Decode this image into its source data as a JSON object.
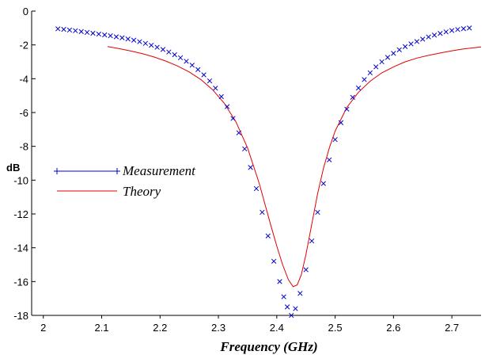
{
  "chart_data": {
    "type": "line",
    "title": "",
    "xlabel": "Frequency (GHz)",
    "ylabel": "dB",
    "xlim": [
      1.98,
      2.75
    ],
    "ylim": [
      -18,
      0
    ],
    "x_ticks": [
      "2",
      "2.1",
      "2.2",
      "2.3",
      "2.4",
      "2.5",
      "2.6",
      "2.7"
    ],
    "x_tick_values": [
      2,
      2.1,
      2.2,
      2.3,
      2.4,
      2.5,
      2.6,
      2.7
    ],
    "y_ticks": [
      "0",
      "-2",
      "-4",
      "-6",
      "-8",
      "-10",
      "-12",
      "-14",
      "-16",
      "-18"
    ],
    "y_tick_values": [
      0,
      -2,
      -4,
      -6,
      -8,
      -10,
      -12,
      -14,
      -16,
      -18
    ],
    "grid": false,
    "legend": {
      "placement": "center-left"
    },
    "series": [
      {
        "name": "Measurement",
        "marker": "x",
        "color": "#0000cc",
        "points": [
          [
            2.025,
            -1.05
          ],
          [
            2.035,
            -1.08
          ],
          [
            2.045,
            -1.12
          ],
          [
            2.055,
            -1.16
          ],
          [
            2.065,
            -1.21
          ],
          [
            2.075,
            -1.26
          ],
          [
            2.085,
            -1.31
          ],
          [
            2.095,
            -1.36
          ],
          [
            2.105,
            -1.41
          ],
          [
            2.115,
            -1.46
          ],
          [
            2.125,
            -1.52
          ],
          [
            2.135,
            -1.58
          ],
          [
            2.145,
            -1.65
          ],
          [
            2.155,
            -1.72
          ],
          [
            2.165,
            -1.81
          ],
          [
            2.175,
            -1.91
          ],
          [
            2.185,
            -2.02
          ],
          [
            2.195,
            -2.14
          ],
          [
            2.205,
            -2.27
          ],
          [
            2.215,
            -2.42
          ],
          [
            2.225,
            -2.58
          ],
          [
            2.235,
            -2.76
          ],
          [
            2.245,
            -2.97
          ],
          [
            2.255,
            -3.2
          ],
          [
            2.265,
            -3.46
          ],
          [
            2.275,
            -3.77
          ],
          [
            2.285,
            -4.13
          ],
          [
            2.295,
            -4.56
          ],
          [
            2.305,
            -5.06
          ],
          [
            2.315,
            -5.65
          ],
          [
            2.325,
            -6.35
          ],
          [
            2.335,
            -7.2
          ],
          [
            2.345,
            -8.15
          ],
          [
            2.355,
            -9.25
          ],
          [
            2.365,
            -10.5
          ],
          [
            2.375,
            -11.9
          ],
          [
            2.385,
            -13.3
          ],
          [
            2.395,
            -14.8
          ],
          [
            2.405,
            -16.0
          ],
          [
            2.412,
            -16.9
          ],
          [
            2.418,
            -17.5
          ],
          [
            2.425,
            -18.0
          ],
          [
            2.432,
            -17.6
          ],
          [
            2.44,
            -16.7
          ],
          [
            2.45,
            -15.3
          ],
          [
            2.46,
            -13.6
          ],
          [
            2.47,
            -11.9
          ],
          [
            2.48,
            -10.2
          ],
          [
            2.49,
            -8.8
          ],
          [
            2.5,
            -7.6
          ],
          [
            2.51,
            -6.6
          ],
          [
            2.52,
            -5.8
          ],
          [
            2.53,
            -5.1
          ],
          [
            2.54,
            -4.55
          ],
          [
            2.55,
            -4.05
          ],
          [
            2.56,
            -3.65
          ],
          [
            2.57,
            -3.3
          ],
          [
            2.58,
            -3.0
          ],
          [
            2.59,
            -2.74
          ],
          [
            2.6,
            -2.5
          ],
          [
            2.61,
            -2.29
          ],
          [
            2.62,
            -2.1
          ],
          [
            2.63,
            -1.94
          ],
          [
            2.64,
            -1.8
          ],
          [
            2.65,
            -1.66
          ],
          [
            2.66,
            -1.53
          ],
          [
            2.67,
            -1.42
          ],
          [
            2.68,
            -1.32
          ],
          [
            2.69,
            -1.23
          ],
          [
            2.7,
            -1.15
          ],
          [
            2.71,
            -1.09
          ],
          [
            2.72,
            -1.04
          ],
          [
            2.73,
            -1.0
          ]
        ]
      },
      {
        "name": "Theory",
        "marker": "line",
        "color": "#e00000",
        "points": [
          [
            2.11,
            -2.1
          ],
          [
            2.13,
            -2.22
          ],
          [
            2.15,
            -2.36
          ],
          [
            2.17,
            -2.52
          ],
          [
            2.19,
            -2.72
          ],
          [
            2.21,
            -2.96
          ],
          [
            2.23,
            -3.25
          ],
          [
            2.25,
            -3.6
          ],
          [
            2.27,
            -4.05
          ],
          [
            2.29,
            -4.65
          ],
          [
            2.31,
            -5.45
          ],
          [
            2.33,
            -6.55
          ],
          [
            2.35,
            -8.1
          ],
          [
            2.37,
            -10.2
          ],
          [
            2.39,
            -12.7
          ],
          [
            2.4,
            -13.9
          ],
          [
            2.41,
            -15.0
          ],
          [
            2.42,
            -15.9
          ],
          [
            2.428,
            -16.3
          ],
          [
            2.435,
            -16.2
          ],
          [
            2.442,
            -15.6
          ],
          [
            2.45,
            -14.4
          ],
          [
            2.46,
            -12.6
          ],
          [
            2.47,
            -10.8
          ],
          [
            2.48,
            -9.3
          ],
          [
            2.49,
            -8.1
          ],
          [
            2.5,
            -7.1
          ],
          [
            2.52,
            -5.7
          ],
          [
            2.54,
            -4.8
          ],
          [
            2.56,
            -4.15
          ],
          [
            2.58,
            -3.65
          ],
          [
            2.6,
            -3.3
          ],
          [
            2.62,
            -3.0
          ],
          [
            2.64,
            -2.78
          ],
          [
            2.66,
            -2.62
          ],
          [
            2.68,
            -2.48
          ],
          [
            2.7,
            -2.35
          ],
          [
            2.72,
            -2.24
          ],
          [
            2.75,
            -2.12
          ]
        ]
      }
    ]
  }
}
